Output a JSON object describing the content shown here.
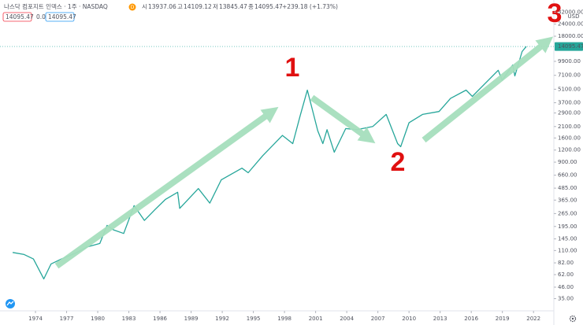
{
  "header": {
    "title": "나스닥 컴포지트 인덱스 · 1주 · NASDAQ",
    "badge": "D",
    "ohlc": [
      {
        "prefix": "시",
        "value": "13937.06"
      },
      {
        "prefix": "고",
        "value": "14109.12"
      },
      {
        "prefix": "저",
        "value": "13845.47"
      },
      {
        "prefix": "종",
        "value": "14095.47"
      }
    ],
    "change": "+239.18 (+1.73%)",
    "indicator_values": [
      "14095.47",
      "0.00",
      "14095.47"
    ]
  },
  "chart_data": {
    "type": "line",
    "log_scale": true,
    "currency": "USD",
    "x": [
      1971.8,
      1972.9,
      1973.8,
      1974.8,
      1975.5,
      1976.5,
      1978.0,
      1979.0,
      1980.2,
      1980.9,
      1981.5,
      1982.5,
      1983.5,
      1984.5,
      1985.5,
      1986.5,
      1987.7,
      1987.9,
      1989.7,
      1990.8,
      1991.9,
      1993.9,
      1994.5,
      1995.9,
      1997.8,
      1998.8,
      1999.5,
      2000.2,
      2000.6,
      2001.2,
      2001.7,
      2002.1,
      2002.8,
      2003.9,
      2005.0,
      2006.5,
      2007.8,
      2008.9,
      2009.2,
      2010.0,
      2011.3,
      2012.9,
      2014.0,
      2015.5,
      2016.1,
      2018.6,
      2018.98,
      2020.0,
      2020.2,
      2020.9,
      2021.3
    ],
    "series": [
      {
        "name": "NASDAQ",
        "color": "#26a69a",
        "values": [
          105,
          100,
          90,
          56,
          80,
          90,
          105,
          120,
          130,
          200,
          180,
          165,
          320,
          225,
          290,
          370,
          440,
          300,
          480,
          340,
          590,
          780,
          700,
          1050,
          1700,
          1400,
          2700,
          5000,
          3400,
          1900,
          1400,
          1950,
          1140,
          2000,
          1950,
          2100,
          2800,
          1400,
          1300,
          2300,
          2800,
          3000,
          4100,
          5000,
          4300,
          8000,
          6300,
          9100,
          7000,
          12500,
          14095.47
        ]
      }
    ],
    "xlim": [
      1970.58,
      2023.96
    ],
    "ylim": [
      26.2,
      42600
    ],
    "xticks": [
      1974,
      1977,
      1980,
      1983,
      1986,
      1989,
      1992,
      1995,
      1998,
      2001,
      2004,
      2007,
      2010,
      2013,
      2016,
      2019,
      2022
    ],
    "yticks": [
      {
        "value": 32000,
        "label": "32000.00"
      },
      {
        "value": 24000,
        "label": "24000.00"
      },
      {
        "value": 18000,
        "label": "18000.00"
      },
      {
        "value": 9900,
        "label": "9900.00"
      },
      {
        "value": 7100,
        "label": "7100.00"
      },
      {
        "value": 5100,
        "label": "5100.00"
      },
      {
        "value": 3700,
        "label": "3700.00"
      },
      {
        "value": 2900,
        "label": "2900.00"
      },
      {
        "value": 2100,
        "label": "2100.00"
      },
      {
        "value": 1600,
        "label": "1600.00"
      },
      {
        "value": 1200,
        "label": "1200.00"
      },
      {
        "value": 900,
        "label": "900.00"
      },
      {
        "value": 660,
        "label": "660.00"
      },
      {
        "value": 485,
        "label": "485.00"
      },
      {
        "value": 365,
        "label": "365.00"
      },
      {
        "value": 265,
        "label": "265.00"
      },
      {
        "value": 195,
        "label": "195.00"
      },
      {
        "value": 145,
        "label": "145.00"
      },
      {
        "value": 110,
        "label": "110.00"
      },
      {
        "value": 82,
        "label": "82.00"
      },
      {
        "value": 62,
        "label": "62.00"
      },
      {
        "value": 46,
        "label": "46.00"
      },
      {
        "value": 35,
        "label": "35.00"
      }
    ],
    "annotations": [
      "1",
      "2",
      "3"
    ]
  }
}
